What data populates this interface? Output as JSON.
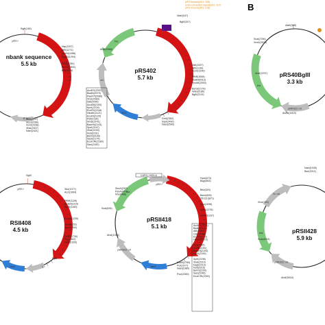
{
  "panel_b_label": "B",
  "colors": {
    "backbone": "#222222",
    "yeast_marker": "#d41414",
    "bla": "#7cc87a",
    "ori": "#bdbdbd",
    "lacz": "#2f7fd6",
    "f1_ori": "#bdbdbd",
    "site_red": "#e53030",
    "site_orange": "#e0901a",
    "legend_purple": "#5a0f8a",
    "box": "#000000"
  },
  "legend": {
    "items": [
      {
        "text": "pRS forward(301: 335)",
        "color": "#e0901a"
      },
      {
        "text": "endo-converted repeat(181: 2x7)",
        "color": "#e0901a"
      },
      {
        "text": "pRS reverse(301: 218)",
        "color": "#e0901a"
      }
    ]
  },
  "plasmids": [
    {
      "id": "genbank",
      "name": "nbank sequence",
      "size": "5.5 kb",
      "sites_left": [],
      "sites_right": [
        "Nsp(1157)",
        "AflII(1271)",
        "EcoNI(1286)",
        "BsaBI(1294)",
        "",
        "PflMI(1780)",
        "PshAI(1802)",
        "BclI(1819)"
      ],
      "sites_bottom": [
        "DrdI(2137)",
        "MscI(2266)",
        "XcmI(2298)",
        "XbaI(2407)",
        "NaeI(2421)"
      ],
      "top_site": "BglII(180)",
      "top_label": "pRS f",
      "features": {
        "f1": "f1 ori"
      }
    },
    {
      "id": "prs402",
      "name": "pRS402",
      "size": "5.7 kb",
      "top_site": "NdeI(347)",
      "top_site_2": "BglII(347)",
      "sites_left": [
        "AhdI(5368)",
        "AccB7I(2097)",
        "BsaBI(2079)",
        "PaeR7I(2086)",
        "XhoI(2089)",
        "SalI(2096)",
        "Acc65I(2100)",
        "KpnI(2104)",
        "EcoRV(2118)",
        "HindIII(2121)",
        "EcoRI(2125)",
        "PstI(2135)",
        "SmaI(2141)",
        "BamHI(2143)",
        "SpeI(2147)",
        "XbaI(2153)",
        "NotI(2161)",
        "BstXI(2169)",
        "SacII(2174)",
        "EcoICRI(2180)",
        "SacI(2182)"
      ],
      "sites_right": [
        "NsiI(1007)",
        "AflII(1130)",
        "XcmI(1290)",
        "",
        "PflMI(1608)",
        "BsaBI(2013)",
        "PpuMI(2053)",
        "",
        "BsrGI(2176)",
        "NdeI(2186)",
        "BglII(2219)"
      ],
      "sites_bottom": [
        "DrdI(2382)",
        "SspI(2490)",
        "NaeI(2590)"
      ],
      "features": {
        "bla": "bla",
        "ori": "ori",
        "lacz": "lacZ",
        "f1": "f1 ori",
        "marker": "ADE2"
      }
    },
    {
      "id": "prs40bglii",
      "name": "pRS40BgIII",
      "size": "3.3 kb",
      "top_site": "AatII(308)",
      "sites_left": [
        "ScaI(2756)",
        "XmnI(2676)",
        "",
        "AhdI(2237)",
        "",
        "AlwNI(1819)"
      ],
      "sites_right": [],
      "sites_bottom": [],
      "features": {
        "bla": "bla",
        "ori": "pBR322 ori"
      }
    },
    {
      "id": "prsii408",
      "name": "RSII408",
      "size": "4.5 kb",
      "top_site": "BglII",
      "sites_left": [],
      "sites_right": [
        "StuI(1077)",
        "AccI(1064)",
        "",
        "",
        "PflMI(1126)",
        "BsaBI(1215)",
        "BsiBI(1160)",
        "",
        "",
        "",
        "EcoNI(1239)",
        "",
        "HpaI(1252)",
        "KpnI(1264)",
        "",
        "",
        "DraIII(1730)",
        "PciI(1802)",
        "NaeI(1926)"
      ],
      "sites_bottom": [],
      "bottom_site": "BglII",
      "features": {
        "lacz": "lacZ",
        "ori": "ori",
        "top_label": "pRS f"
      }
    },
    {
      "id": "prsii418",
      "name": "pRSII418",
      "size": "5.1 kb",
      "top_site": "CAP3 | HIS3-A",
      "sites_left": [
        "SexAI(297)",
        "PshAI(427)",
        "NheI(488)",
        "",
        "ScaI(634)",
        "",
        "",
        "",
        "AhdI(1054)"
      ],
      "sites_right": [
        "HpaI(473)",
        "BsgI(563)",
        "",
        "",
        "BfuI(620)",
        "",
        "BsmI(828)",
        "Tth111I(871)",
        "",
        "AccI(1096)",
        "",
        "XcmI(1276)",
        "",
        "PshAI(1337)",
        "",
        "AccB7I(2151)",
        "BsaBI(2157)",
        "AflII(2167)",
        "ClaI(2168)",
        "EcoRI(2172)",
        "HindIII(2173)",
        "",
        "PstI(2185)",
        "SmaI(2190)",
        "BamHI(2193)",
        "SacII(2190)",
        "",
        "SpeI(2198)",
        "XbaI(2210)",
        "EagI(2213)",
        "NotI(2215)",
        "BstXI(2230)",
        "SacI(2246)",
        "EcoICRI(2250)"
      ],
      "sites_bottom": [
        "DraIII(1789)",
        "PciI(1977)",
        "NaeI(1980)",
        "",
        "PvuI(2060)"
      ],
      "features": {
        "bla": "bla",
        "ori": "pBR322 ori",
        "lacz": "lacZ",
        "marker": "HIS3",
        "top_label": "pRS f"
      }
    },
    {
      "id": "prsii428",
      "name": "pRSII428",
      "size": "5.9 kb",
      "top_site": "NaeI(1945)",
      "top_site_2": "BsrI(2012)",
      "sites_left": [
        "XhoI(240)",
        "",
        "",
        "",
        "ScaI(4033)",
        "",
        "",
        "AhdI(5518)"
      ],
      "sites_right": [],
      "sites_bottom": [],
      "features": {
        "bla": "bla",
        "ori": "pBR322 ori",
        "marker": "2u ori"
      }
    }
  ]
}
